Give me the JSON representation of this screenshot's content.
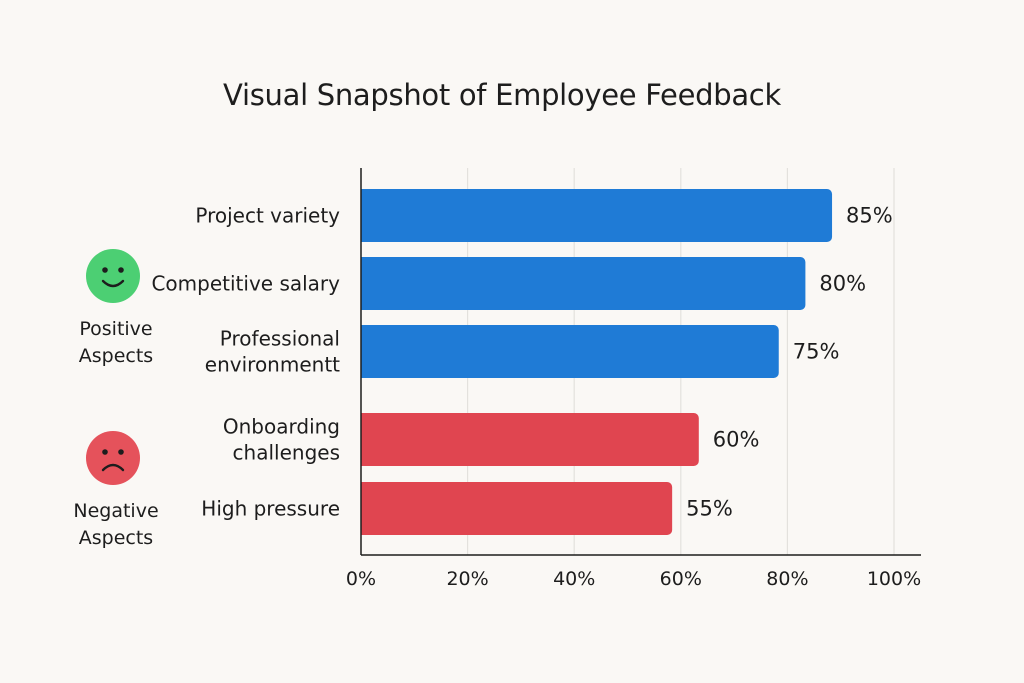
{
  "chart_data": {
    "type": "bar",
    "orientation": "horizontal",
    "title": "Visual Snapshot of Employee Feedback",
    "categories": [
      "Project variety",
      "Competitive salary",
      "Professional environmentt",
      "Onboarding challenges",
      "High pressure"
    ],
    "values": [
      85,
      80,
      75,
      60,
      55
    ],
    "value_labels": [
      "85%",
      "80%",
      "75%",
      "60%",
      "55%"
    ],
    "groups": [
      {
        "name": "Positive Aspects",
        "label_lines": [
          "Positive",
          "Aspects"
        ],
        "icon": "happy-face-icon",
        "color": "#1f7bd6",
        "icon_color": "#4ccf73",
        "members": [
          0,
          1,
          2
        ]
      },
      {
        "name": "Negative Aspects",
        "label_lines": [
          "Negative",
          "Aspects"
        ],
        "icon": "sad-face-icon",
        "color": "#e04550",
        "icon_color": "#e5525b",
        "members": [
          3,
          4
        ]
      }
    ],
    "category_label_lines": [
      [
        "Project variety"
      ],
      [
        "Competitive salary"
      ],
      [
        "Professional",
        "environmentt"
      ],
      [
        "Onboarding",
        "challenges"
      ],
      [
        "High pressure"
      ]
    ],
    "xlim": [
      0,
      100
    ],
    "x_ticks": [
      "0%",
      "20%",
      "40%",
      "60%",
      "80%",
      "100%"
    ],
    "grid": true,
    "xlabel": "",
    "ylabel": ""
  }
}
